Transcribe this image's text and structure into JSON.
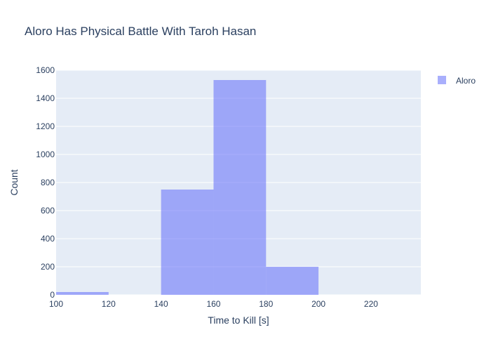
{
  "chart_data": {
    "type": "bar",
    "title": "Aloro Has Physical Battle With Taroh Hasan",
    "xlabel": "Time to Kill [s]",
    "ylabel": "Count",
    "xlim": [
      100,
      239
    ],
    "ylim": [
      0,
      1600
    ],
    "x_ticks": [
      100,
      120,
      140,
      160,
      180,
      200,
      220
    ],
    "y_ticks": [
      0,
      200,
      400,
      600,
      800,
      1000,
      1200,
      1400,
      1600
    ],
    "grid": true,
    "legend_position": "top-right",
    "series": [
      {
        "name": "Aloro",
        "color": "#636efa",
        "opacity": 0.55,
        "bins": [
          {
            "x0": 100,
            "x1": 120,
            "count": 20
          },
          {
            "x0": 120,
            "x1": 140,
            "count": 0
          },
          {
            "x0": 140,
            "x1": 160,
            "count": 750
          },
          {
            "x0": 160,
            "x1": 180,
            "count": 1530
          },
          {
            "x0": 180,
            "x1": 200,
            "count": 200
          }
        ]
      }
    ]
  },
  "colors": {
    "plot_background": "#e5ecf6",
    "grid": "#ffffff",
    "text": "#2a3f5f"
  }
}
